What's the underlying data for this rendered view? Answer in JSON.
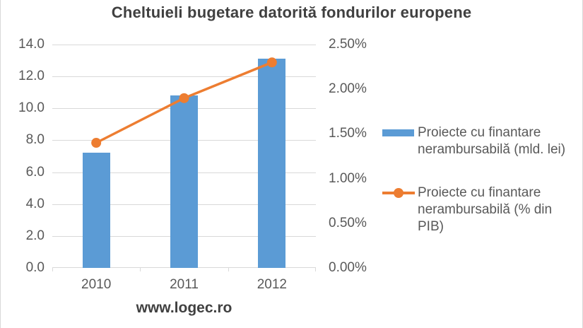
{
  "watermark": "www.logec.ro",
  "colors": {
    "bar": "#5B9BD5",
    "line": "#ED7D31",
    "grid": "#D9D9D9",
    "axis_text": "#595959",
    "title_text": "#404040"
  },
  "chart_data": {
    "type": "bar",
    "title": "Cheltuieli bugetare datorită fondurilor europene",
    "categories": [
      "2010",
      "2011",
      "2012"
    ],
    "series": [
      {
        "name": "Proiecte cu finantare nerambursabilă (mld. lei)",
        "type": "bar",
        "axis": "left",
        "values": [
          7.2,
          10.8,
          13.1
        ],
        "color": "#5B9BD5"
      },
      {
        "name": "Proiecte cu finantare nerambursabilă (% din PIB)",
        "type": "line",
        "axis": "right",
        "values": [
          1.4,
          1.9,
          2.3
        ],
        "color": "#ED7D31"
      }
    ],
    "left_axis": {
      "min": 0,
      "max": 14,
      "step": 2,
      "tick_labels": [
        "0.0",
        "2.0",
        "4.0",
        "6.0",
        "8.0",
        "10.0",
        "12.0",
        "14.0"
      ]
    },
    "right_axis": {
      "min": 0,
      "max": 2.5,
      "step": 0.5,
      "tick_labels": [
        "0.00%",
        "0.50%",
        "1.00%",
        "1.50%",
        "2.00%",
        "2.50%"
      ]
    },
    "grid": true,
    "legend_position": "right"
  },
  "legend": {
    "items": [
      {
        "label": "Proiecte cu finantare nerambursabilă (mld. lei)",
        "swatch": "bar"
      },
      {
        "label": "Proiecte cu finantare nerambursabilă (% din PIB)",
        "swatch": "line-marker"
      }
    ]
  }
}
